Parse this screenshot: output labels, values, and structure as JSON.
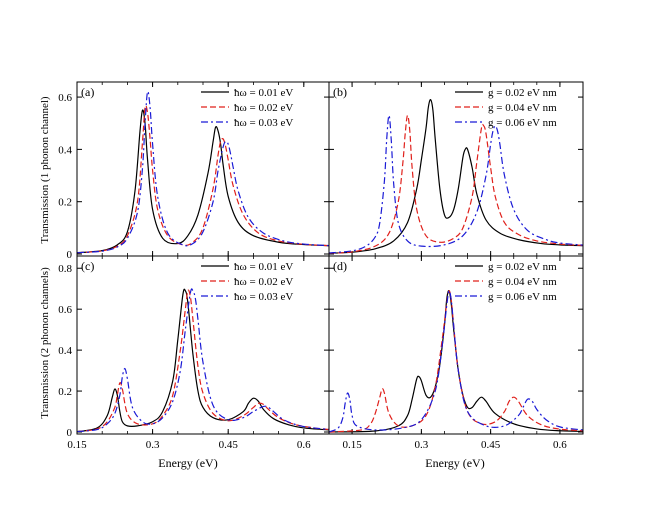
{
  "figure": {
    "y_label_top": "Transmission (1 phonon channel)",
    "y_label_bottom": "Transmission (2 phonon channels)",
    "x_label": "Energy (eV)",
    "colors": {
      "solid": "#000000",
      "dashed": "#e0201b",
      "dashdot": "#1a1ad6"
    }
  },
  "chart_data": [
    {
      "type": "line",
      "panel": "(a)",
      "xlim": [
        0.15,
        0.65
      ],
      "ylim": [
        0,
        0.65
      ],
      "xticks": [
        0.15,
        0.3,
        0.45,
        0.6
      ],
      "yticks": [
        0,
        0.2,
        0.4,
        0.6
      ],
      "ytick_labels": [
        "0",
        "0.2",
        "0.4",
        "0.6"
      ],
      "legend_position": "top-right",
      "series": [
        {
          "name": "ħω = 0.01 eV",
          "style": "solid",
          "x": [
            0.15,
            0.2,
            0.23,
            0.25,
            0.265,
            0.275,
            0.28,
            0.285,
            0.29,
            0.3,
            0.32,
            0.35,
            0.37,
            0.39,
            0.41,
            0.42,
            0.425,
            0.43,
            0.435,
            0.44,
            0.45,
            0.47,
            0.5,
            0.55,
            0.6,
            0.65
          ],
          "y": [
            0.005,
            0.013,
            0.035,
            0.085,
            0.24,
            0.47,
            0.55,
            0.5,
            0.36,
            0.17,
            0.06,
            0.04,
            0.07,
            0.15,
            0.31,
            0.43,
            0.485,
            0.47,
            0.42,
            0.34,
            0.22,
            0.12,
            0.07,
            0.045,
            0.036,
            0.032
          ]
        },
        {
          "name": "ħω = 0.02 eV",
          "style": "dashed",
          "x": [
            0.15,
            0.2,
            0.23,
            0.25,
            0.27,
            0.28,
            0.285,
            0.29,
            0.295,
            0.3,
            0.31,
            0.33,
            0.36,
            0.38,
            0.4,
            0.42,
            0.43,
            0.435,
            0.44,
            0.445,
            0.45,
            0.46,
            0.48,
            0.51,
            0.55,
            0.6,
            0.65
          ],
          "y": [
            0.005,
            0.012,
            0.03,
            0.07,
            0.2,
            0.43,
            0.56,
            0.54,
            0.44,
            0.32,
            0.17,
            0.07,
            0.035,
            0.045,
            0.1,
            0.25,
            0.38,
            0.43,
            0.44,
            0.41,
            0.36,
            0.26,
            0.15,
            0.08,
            0.05,
            0.037,
            0.032
          ]
        },
        {
          "name": "ħω = 0.03 eV",
          "style": "dashdot",
          "x": [
            0.15,
            0.2,
            0.23,
            0.25,
            0.27,
            0.28,
            0.285,
            0.29,
            0.295,
            0.3,
            0.31,
            0.33,
            0.36,
            0.38,
            0.4,
            0.42,
            0.43,
            0.44,
            0.445,
            0.45,
            0.455,
            0.46,
            0.47,
            0.49,
            0.52,
            0.56,
            0.6,
            0.65
          ],
          "y": [
            0.005,
            0.011,
            0.027,
            0.06,
            0.16,
            0.33,
            0.5,
            0.62,
            0.56,
            0.42,
            0.22,
            0.08,
            0.035,
            0.04,
            0.085,
            0.2,
            0.32,
            0.41,
            0.43,
            0.42,
            0.38,
            0.33,
            0.24,
            0.14,
            0.08,
            0.05,
            0.038,
            0.032
          ]
        }
      ]
    },
    {
      "type": "line",
      "panel": "(b)",
      "xlim": [
        0.1,
        0.65
      ],
      "ylim": [
        0,
        0.65
      ],
      "xticks": [
        0.15,
        0.3,
        0.45,
        0.6
      ],
      "yticks": [
        0,
        0.2,
        0.4,
        0.6
      ],
      "legend_position": "top-right",
      "series": [
        {
          "name": "g = 0.02 eV nm",
          "style": "solid",
          "x": [
            0.1,
            0.15,
            0.2,
            0.24,
            0.27,
            0.29,
            0.3,
            0.31,
            0.315,
            0.32,
            0.325,
            0.33,
            0.34,
            0.35,
            0.36,
            0.37,
            0.38,
            0.39,
            0.395,
            0.4,
            0.41,
            0.42,
            0.44,
            0.47,
            0.51,
            0.56,
            0.6,
            0.65
          ],
          "y": [
            0.003,
            0.007,
            0.02,
            0.05,
            0.12,
            0.25,
            0.36,
            0.48,
            0.56,
            0.59,
            0.55,
            0.44,
            0.25,
            0.15,
            0.14,
            0.17,
            0.25,
            0.37,
            0.4,
            0.4,
            0.33,
            0.23,
            0.13,
            0.08,
            0.055,
            0.04,
            0.035,
            0.032
          ]
        },
        {
          "name": "g = 0.04 eV nm",
          "style": "dashed",
          "x": [
            0.1,
            0.15,
            0.2,
            0.23,
            0.25,
            0.26,
            0.265,
            0.27,
            0.275,
            0.28,
            0.29,
            0.31,
            0.34,
            0.37,
            0.39,
            0.41,
            0.42,
            0.43,
            0.435,
            0.44,
            0.45,
            0.46,
            0.48,
            0.51,
            0.55,
            0.6,
            0.65
          ],
          "y": [
            0.003,
            0.008,
            0.03,
            0.08,
            0.2,
            0.35,
            0.46,
            0.53,
            0.47,
            0.33,
            0.17,
            0.07,
            0.045,
            0.06,
            0.1,
            0.22,
            0.35,
            0.48,
            0.49,
            0.46,
            0.33,
            0.22,
            0.12,
            0.075,
            0.05,
            0.038,
            0.033
          ]
        },
        {
          "name": "g = 0.06 eV nm",
          "style": "dashdot",
          "x": [
            0.1,
            0.15,
            0.18,
            0.2,
            0.21,
            0.22,
            0.225,
            0.23,
            0.235,
            0.24,
            0.25,
            0.27,
            0.3,
            0.35,
            0.39,
            0.42,
            0.44,
            0.45,
            0.455,
            0.46,
            0.465,
            0.47,
            0.48,
            0.5,
            0.53,
            0.57,
            0.6,
            0.65
          ],
          "y": [
            0.004,
            0.012,
            0.03,
            0.065,
            0.12,
            0.28,
            0.44,
            0.53,
            0.43,
            0.27,
            0.12,
            0.05,
            0.03,
            0.035,
            0.07,
            0.16,
            0.3,
            0.42,
            0.47,
            0.49,
            0.47,
            0.42,
            0.3,
            0.17,
            0.09,
            0.055,
            0.042,
            0.034
          ]
        }
      ]
    },
    {
      "type": "line",
      "panel": "(c)",
      "xlim": [
        0.15,
        0.65
      ],
      "ylim": [
        0,
        0.85
      ],
      "xticks": [
        0.15,
        0.3,
        0.45,
        0.6
      ],
      "yticks": [
        0,
        0.2,
        0.4,
        0.6,
        0.8
      ],
      "ytick_labels": [
        "0",
        "0.2",
        "0.4",
        "0.6",
        "0.8"
      ],
      "xtick_labels": [
        "0.15",
        "0.3",
        "0.45",
        "0.6"
      ],
      "legend_position": "top-right",
      "series": [
        {
          "name": "ħω = 0.01 eV",
          "style": "solid",
          "x": [
            0.15,
            0.19,
            0.21,
            0.22,
            0.225,
            0.23,
            0.235,
            0.24,
            0.25,
            0.27,
            0.3,
            0.32,
            0.34,
            0.35,
            0.36,
            0.365,
            0.37,
            0.38,
            0.39,
            0.4,
            0.42,
            0.45,
            0.48,
            0.49,
            0.5,
            0.51,
            0.52,
            0.54,
            0.57,
            0.6,
            0.65
          ],
          "y": [
            0.002,
            0.02,
            0.08,
            0.17,
            0.21,
            0.18,
            0.1,
            0.05,
            0.03,
            0.03,
            0.05,
            0.1,
            0.25,
            0.45,
            0.67,
            0.69,
            0.63,
            0.38,
            0.2,
            0.12,
            0.07,
            0.06,
            0.1,
            0.14,
            0.165,
            0.15,
            0.11,
            0.065,
            0.035,
            0.02,
            0.01
          ]
        },
        {
          "name": "ħω = 0.02 eV",
          "style": "dashed",
          "x": [
            0.15,
            0.19,
            0.21,
            0.225,
            0.23,
            0.235,
            0.24,
            0.25,
            0.27,
            0.3,
            0.32,
            0.34,
            0.355,
            0.365,
            0.37,
            0.375,
            0.38,
            0.39,
            0.4,
            0.42,
            0.45,
            0.48,
            0.5,
            0.51,
            0.52,
            0.53,
            0.55,
            0.58,
            0.62,
            0.65
          ],
          "y": [
            0.002,
            0.015,
            0.05,
            0.12,
            0.18,
            0.24,
            0.21,
            0.09,
            0.04,
            0.04,
            0.08,
            0.18,
            0.4,
            0.6,
            0.69,
            0.66,
            0.55,
            0.32,
            0.19,
            0.09,
            0.055,
            0.08,
            0.12,
            0.14,
            0.135,
            0.11,
            0.07,
            0.038,
            0.02,
            0.012
          ]
        },
        {
          "name": "ħω = 0.03 eV",
          "style": "dashdot",
          "x": [
            0.15,
            0.19,
            0.21,
            0.225,
            0.235,
            0.24,
            0.245,
            0.25,
            0.26,
            0.28,
            0.3,
            0.32,
            0.34,
            0.355,
            0.365,
            0.375,
            0.38,
            0.385,
            0.39,
            0.4,
            0.42,
            0.45,
            0.48,
            0.5,
            0.52,
            0.53,
            0.54,
            0.56,
            0.59,
            0.62,
            0.65
          ],
          "y": [
            0.002,
            0.012,
            0.04,
            0.09,
            0.18,
            0.27,
            0.31,
            0.26,
            0.12,
            0.05,
            0.04,
            0.07,
            0.15,
            0.3,
            0.5,
            0.68,
            0.69,
            0.65,
            0.55,
            0.34,
            0.13,
            0.06,
            0.07,
            0.1,
            0.125,
            0.12,
            0.1,
            0.06,
            0.032,
            0.02,
            0.013
          ]
        }
      ]
    },
    {
      "type": "line",
      "panel": "(d)",
      "xlim": [
        0.1,
        0.65
      ],
      "ylim": [
        0,
        0.85
      ],
      "xticks": [
        0.15,
        0.3,
        0.45,
        0.6
      ],
      "yticks": [
        0,
        0.2,
        0.4,
        0.6,
        0.8
      ],
      "xtick_labels": [
        "0.15",
        "0.3",
        "0.45",
        "0.6"
      ],
      "legend_position": "top-right",
      "series": [
        {
          "name": "g = 0.02 eV nm",
          "style": "solid",
          "x": [
            0.1,
            0.2,
            0.25,
            0.27,
            0.28,
            0.29,
            0.295,
            0.3,
            0.31,
            0.32,
            0.33,
            0.34,
            0.35,
            0.355,
            0.36,
            0.365,
            0.37,
            0.38,
            0.39,
            0.4,
            0.41,
            0.42,
            0.43,
            0.44,
            0.46,
            0.5,
            0.55,
            0.6,
            0.65
          ],
          "y": [
            0.0,
            0.005,
            0.03,
            0.08,
            0.16,
            0.26,
            0.27,
            0.25,
            0.18,
            0.17,
            0.22,
            0.33,
            0.52,
            0.65,
            0.69,
            0.62,
            0.5,
            0.3,
            0.18,
            0.12,
            0.12,
            0.15,
            0.17,
            0.15,
            0.09,
            0.04,
            0.015,
            0.006,
            0.003
          ]
        },
        {
          "name": "g = 0.04 eV nm",
          "style": "dashed",
          "x": [
            0.1,
            0.17,
            0.19,
            0.2,
            0.21,
            0.215,
            0.22,
            0.23,
            0.25,
            0.28,
            0.31,
            0.33,
            0.345,
            0.355,
            0.36,
            0.365,
            0.37,
            0.38,
            0.4,
            0.43,
            0.46,
            0.48,
            0.49,
            0.5,
            0.51,
            0.53,
            0.56,
            0.6,
            0.65
          ],
          "y": [
            0.0,
            0.01,
            0.04,
            0.09,
            0.17,
            0.21,
            0.19,
            0.09,
            0.03,
            0.03,
            0.08,
            0.22,
            0.45,
            0.63,
            0.69,
            0.64,
            0.52,
            0.3,
            0.1,
            0.04,
            0.05,
            0.1,
            0.15,
            0.17,
            0.15,
            0.08,
            0.035,
            0.014,
            0.006
          ]
        },
        {
          "name": "g = 0.06 eV nm",
          "style": "dashdot",
          "x": [
            0.1,
            0.12,
            0.13,
            0.135,
            0.14,
            0.145,
            0.15,
            0.16,
            0.2,
            0.26,
            0.3,
            0.33,
            0.345,
            0.355,
            0.36,
            0.365,
            0.37,
            0.38,
            0.4,
            0.44,
            0.48,
            0.51,
            0.52,
            0.53,
            0.54,
            0.55,
            0.57,
            0.6,
            0.65
          ],
          "y": [
            0.0,
            0.02,
            0.07,
            0.14,
            0.19,
            0.16,
            0.08,
            0.03,
            0.01,
            0.02,
            0.06,
            0.2,
            0.42,
            0.62,
            0.69,
            0.64,
            0.52,
            0.3,
            0.1,
            0.03,
            0.03,
            0.08,
            0.12,
            0.16,
            0.15,
            0.11,
            0.06,
            0.025,
            0.01
          ]
        }
      ]
    }
  ]
}
